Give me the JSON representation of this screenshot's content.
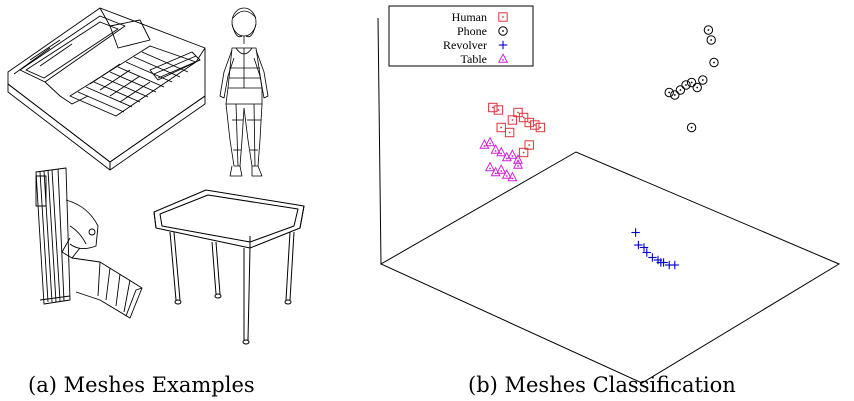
{
  "captions": {
    "left": "(a) Meshes Examples",
    "right": "(b) Meshes Classification"
  },
  "meshes": [
    {
      "name": "Phone",
      "icon": "phone-wireframe-icon"
    },
    {
      "name": "Human",
      "icon": "human-wireframe-icon"
    },
    {
      "name": "Revolver",
      "icon": "revolver-wireframe-icon"
    },
    {
      "name": "Table",
      "icon": "table-wireframe-icon"
    }
  ],
  "chart_data": {
    "type": "scatter",
    "projection": "3d",
    "title": "",
    "xlabel": "",
    "ylabel": "",
    "zlabel": "",
    "grid": false,
    "legend": "top-left",
    "series": [
      {
        "name": "Human",
        "marker": "square-dot",
        "color": "#e0343a",
        "points": [
          [
            0.11,
            0.65
          ],
          [
            0.13,
            0.64
          ],
          [
            0.18,
            0.6
          ],
          [
            0.2,
            0.63
          ],
          [
            0.22,
            0.61
          ],
          [
            0.24,
            0.59
          ],
          [
            0.26,
            0.58
          ],
          [
            0.28,
            0.57
          ],
          [
            0.14,
            0.57
          ],
          [
            0.17,
            0.55
          ],
          [
            0.24,
            0.5
          ],
          [
            0.22,
            0.47
          ]
        ]
      },
      {
        "name": "Phone",
        "marker": "circle-dot",
        "color": "#000000",
        "points": [
          [
            0.88,
            0.96
          ],
          [
            0.89,
            0.92
          ],
          [
            0.9,
            0.83
          ],
          [
            0.86,
            0.76
          ],
          [
            0.84,
            0.73
          ],
          [
            0.82,
            0.75
          ],
          [
            0.8,
            0.74
          ],
          [
            0.78,
            0.72
          ],
          [
            0.76,
            0.7
          ],
          [
            0.74,
            0.71
          ],
          [
            0.82,
            0.57
          ]
        ]
      },
      {
        "name": "Revolver",
        "marker": "plus",
        "color": "#0000cc",
        "points": [
          [
            0.62,
            0.15
          ],
          [
            0.63,
            0.1
          ],
          [
            0.65,
            0.09
          ],
          [
            0.66,
            0.07
          ],
          [
            0.68,
            0.05
          ],
          [
            0.7,
            0.04
          ],
          [
            0.71,
            0.03
          ],
          [
            0.72,
            0.03
          ],
          [
            0.74,
            0.02
          ],
          [
            0.76,
            0.02
          ]
        ]
      },
      {
        "name": "Table",
        "marker": "triangle-dot",
        "color": "#d020d0",
        "points": [
          [
            0.08,
            0.5
          ],
          [
            0.1,
            0.51
          ],
          [
            0.12,
            0.48
          ],
          [
            0.14,
            0.47
          ],
          [
            0.16,
            0.45
          ],
          [
            0.18,
            0.46
          ],
          [
            0.2,
            0.44
          ],
          [
            0.1,
            0.41
          ],
          [
            0.12,
            0.39
          ],
          [
            0.14,
            0.4
          ],
          [
            0.16,
            0.38
          ],
          [
            0.18,
            0.37
          ],
          [
            0.2,
            0.42
          ]
        ]
      }
    ]
  }
}
